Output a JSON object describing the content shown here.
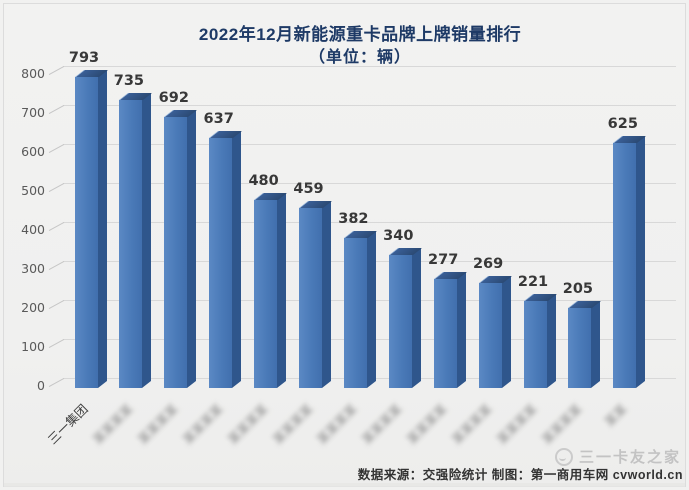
{
  "title": {
    "line1": "2022年12月新能源重卡品牌上牌销量排行",
    "line2": "（单位：辆）"
  },
  "chart_data": {
    "type": "bar",
    "style": "3d-column",
    "title": "2022年12月新能源重卡品牌上牌销量排行",
    "subtitle": "（单位：辆）",
    "categories": [
      {
        "label": "三一集团",
        "blurred": false
      },
      {
        "label": "某某某某",
        "blurred": true
      },
      {
        "label": "某某某某",
        "blurred": true
      },
      {
        "label": "某某某某",
        "blurred": true
      },
      {
        "label": "某某某某",
        "blurred": true
      },
      {
        "label": "某某某某",
        "blurred": true
      },
      {
        "label": "某某某某",
        "blurred": true
      },
      {
        "label": "某某某某",
        "blurred": true
      },
      {
        "label": "某某某某",
        "blurred": true
      },
      {
        "label": "某某某某",
        "blurred": true
      },
      {
        "label": "某某某某",
        "blurred": true
      },
      {
        "label": "某某某某",
        "blurred": true
      },
      {
        "label": "某某",
        "blurred": true
      }
    ],
    "values": [
      793,
      735,
      692,
      637,
      480,
      459,
      382,
      340,
      277,
      269,
      221,
      205,
      625
    ],
    "ylim": [
      0,
      800
    ],
    "ytick_step": 100,
    "yticks": [
      0,
      100,
      200,
      300,
      400,
      500,
      600,
      700,
      800
    ],
    "grid": true,
    "legend": "none",
    "bar_color_front": "#4a7ab8",
    "bar_color_side": "#2f568c",
    "bar_color_top": "#35597f",
    "value_label_color": "#383838",
    "axis_label_color": "#595959",
    "title_color": "#1e3a66"
  },
  "footer": {
    "source_text": "数据来源：交强险统计 制图：第一商用车网 cvworld.cn",
    "watermark_text": "三一卡友之家"
  }
}
